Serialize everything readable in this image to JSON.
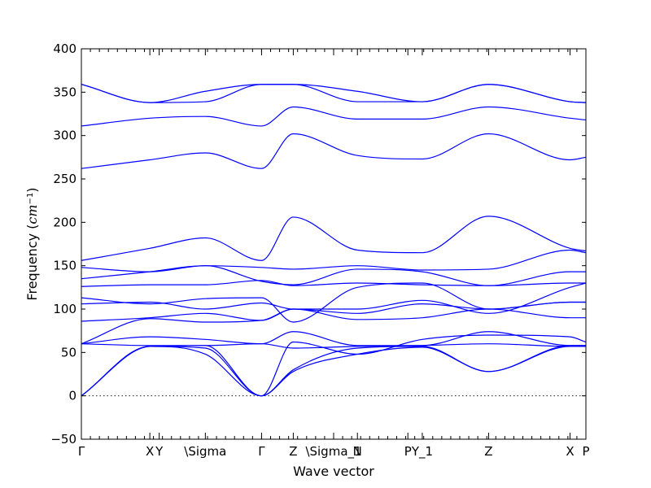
{
  "chart_data": {
    "type": "line",
    "title": "",
    "xlabel": "Wave vector",
    "ylabel": "Frequency (cm⁻¹)",
    "ylabel_parts": {
      "prefix": "Frequency (",
      "unit": "cm",
      "exponent": "−1",
      "suffix": ")"
    },
    "ylim": [
      -50,
      400
    ],
    "yticks": [
      -50,
      0,
      50,
      100,
      150,
      200,
      250,
      300,
      350,
      400
    ],
    "grid": false,
    "legend": "none",
    "color": "#0000ff",
    "zero_line": true,
    "xlim": [
      0,
      7.0
    ],
    "high_symmetry_points": [
      {
        "label": "Γ",
        "x": 0.0
      },
      {
        "label": "X",
        "x": 0.95
      },
      {
        "label": "Y",
        "x": 1.08
      },
      {
        "label": "\\Sigma",
        "x": 1.72
      },
      {
        "label": "Γ",
        "x": 2.5
      },
      {
        "label": "Z",
        "x": 2.94
      },
      {
        "label": "\\Sigma_1",
        "x": 3.5
      },
      {
        "label": "N",
        "x": 3.83
      },
      {
        "label": "P",
        "x": 4.53
      },
      {
        "label": "Y_1",
        "x": 4.73
      },
      {
        "label": "Z",
        "x": 5.65
      },
      {
        "label": "X",
        "x": 6.78
      },
      {
        "label": "P",
        "x": 7.0
      }
    ],
    "x_knots": [
      0.0,
      0.95,
      1.72,
      2.5,
      2.94,
      3.83,
      4.73,
      5.65,
      6.78,
      7.0
    ],
    "series": [
      {
        "values": [
          0,
          57,
          55,
          0,
          28,
          48,
          56,
          28,
          57,
          57
        ]
      },
      {
        "values": [
          0,
          57,
          48,
          0,
          30,
          55,
          57,
          28,
          58,
          58
        ]
      },
      {
        "values": [
          0,
          57,
          58,
          0,
          62,
          48,
          65,
          70,
          68,
          62
        ]
      },
      {
        "values": [
          60,
          58,
          58,
          60,
          55,
          57,
          58,
          60,
          57,
          57
        ]
      },
      {
        "values": [
          60,
          68,
          65,
          60,
          74,
          58,
          58,
          74,
          58,
          58
        ]
      },
      {
        "values": [
          60,
          89,
          85,
          87,
          100,
          88,
          90,
          100,
          90,
          90
        ]
      },
      {
        "values": [
          86,
          90,
          95,
          87,
          100,
          95,
          106,
          100,
          108,
          108
        ]
      },
      {
        "values": [
          106,
          108,
          100,
          107,
          100,
          100,
          110,
          95,
          125,
          130
        ]
      },
      {
        "values": [
          113,
          106,
          112,
          113,
          85,
          125,
          130,
          100,
          108,
          108
        ]
      },
      {
        "values": [
          126,
          128,
          128,
          133,
          127,
          130,
          128,
          127,
          130,
          130
        ]
      },
      {
        "values": [
          135,
          143,
          150,
          132,
          128,
          146,
          143,
          127,
          143,
          143
        ]
      },
      {
        "values": [
          148,
          143,
          150,
          148,
          146,
          150,
          145,
          146,
          168,
          165
        ]
      },
      {
        "values": [
          156,
          170,
          182,
          156,
          206,
          168,
          165,
          207,
          170,
          167
        ]
      },
      {
        "values": [
          262,
          272,
          280,
          262,
          302,
          277,
          273,
          302,
          272,
          275
        ]
      },
      {
        "values": [
          311,
          320,
          322,
          311,
          333,
          319,
          319,
          333,
          320,
          318
        ]
      },
      {
        "values": [
          359,
          338,
          339,
          359,
          359,
          339,
          339,
          359,
          339,
          338
        ]
      },
      {
        "values": [
          359,
          338,
          351,
          359,
          359,
          351,
          339,
          359,
          339,
          338
        ]
      }
    ]
  }
}
